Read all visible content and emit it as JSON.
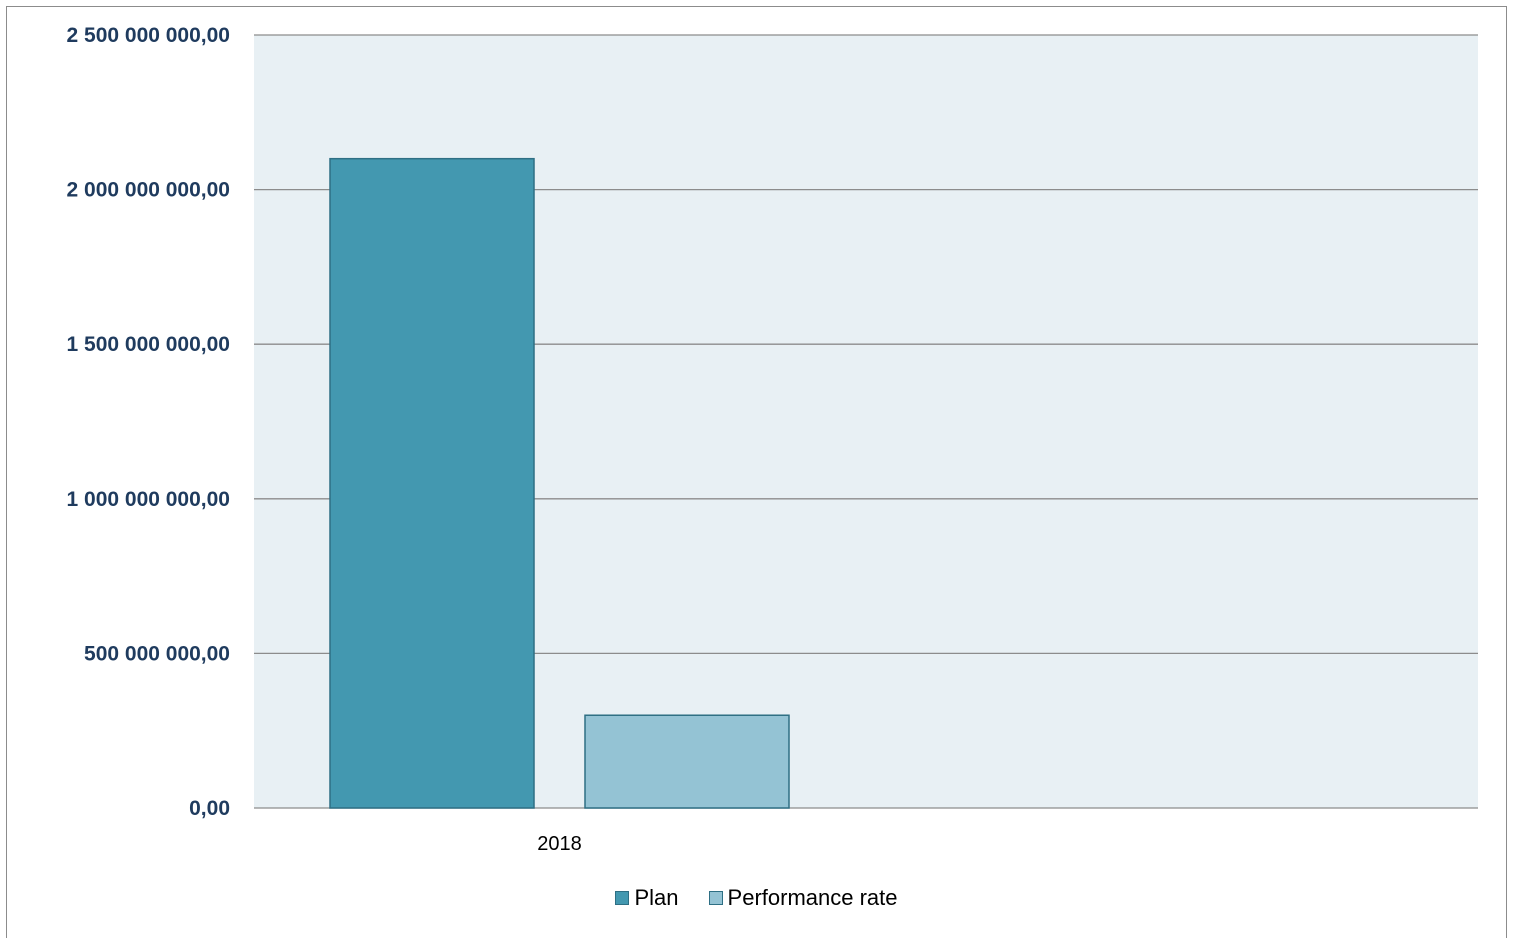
{
  "chart_data": {
    "type": "bar",
    "categories": [
      "2018"
    ],
    "series": [
      {
        "name": "Plan",
        "values": [
          2100000000
        ],
        "color": "#4398b0"
      },
      {
        "name": "Performance rate",
        "values": [
          300000000
        ],
        "color": "#94c3d4"
      }
    ],
    "ylim": [
      0,
      2500000000
    ],
    "yticks": [
      0,
      500000000,
      1000000000,
      1500000000,
      2000000000,
      2500000000
    ],
    "ytick_labels": [
      "0,00",
      "500 000 000,00",
      "1 000 000 000,00",
      "1 500 000 000,00",
      "2 000 000 000,00",
      "2 500 000 000,00"
    ],
    "grid": true,
    "legend_position": "bottom",
    "plot_background": "#e8f0f4",
    "title": "",
    "xlabel": "",
    "ylabel": ""
  }
}
